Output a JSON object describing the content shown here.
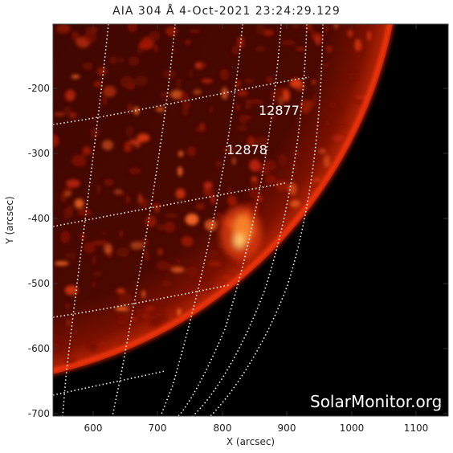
{
  "title": "AIA 304 Å  4-Oct-2021 23:24:29.129",
  "xlabel": "X (arcsec)",
  "ylabel": "Y (arcsec)",
  "x_ticks": [
    "600",
    "700",
    "800",
    "900",
    "1000",
    "1100"
  ],
  "y_ticks": [
    "-200",
    "-300",
    "-400",
    "-500",
    "-600",
    "-700"
  ],
  "active_regions": [
    "12877",
    "12878"
  ],
  "watermark": "SolarMonitor.org",
  "colors": {
    "background": "#000000",
    "limb": "#ff4410",
    "grid": "#ffffff",
    "emission": "#c8200a"
  }
}
